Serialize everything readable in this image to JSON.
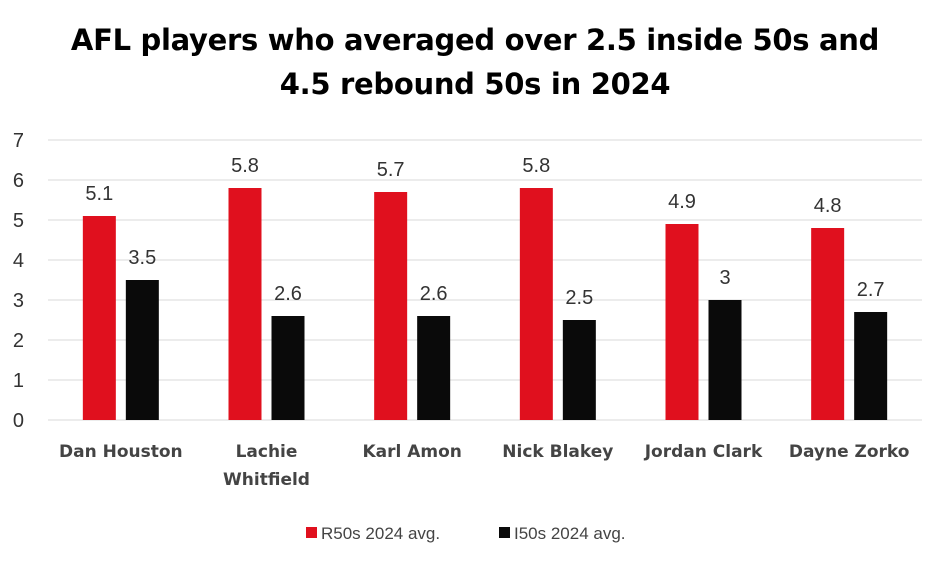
{
  "chart_data": {
    "type": "bar",
    "title": "AFL players who averaged over 2.5 inside 50s and 4.5 rebound 50s in 2024",
    "title_lines": [
      "AFL players who averaged over 2.5 inside 50s and",
      "4.5 rebound 50s in 2024"
    ],
    "categories": [
      "Dan Houston",
      "Lachie Whitfield",
      "Karl Amon",
      "Nick Blakey",
      "Jordan Clark",
      "Dayne Zorko"
    ],
    "category_lines": [
      [
        "Dan Houston"
      ],
      [
        "Lachie",
        "Whitfield"
      ],
      [
        "Karl Amon"
      ],
      [
        "Nick Blakey"
      ],
      [
        "Jordan Clark"
      ],
      [
        "Dayne Zorko"
      ]
    ],
    "series": [
      {
        "name": "R50s 2024 avg.",
        "color": "#E0101E",
        "values": [
          5.1,
          5.8,
          5.7,
          5.8,
          4.9,
          4.8
        ],
        "labels": [
          "5.1",
          "5.8",
          "5.7",
          "5.8",
          "4.9",
          "4.8"
        ]
      },
      {
        "name": "I50s 2024 avg.",
        "color": "#0A0A0A",
        "values": [
          3.5,
          2.6,
          2.6,
          2.5,
          3.0,
          2.7
        ],
        "labels": [
          "3.5",
          "2.6",
          "2.6",
          "2.5",
          "3",
          "2.7"
        ]
      }
    ],
    "ylim": [
      0,
      7
    ],
    "yticks": [
      "0",
      "1",
      "2",
      "3",
      "4",
      "5",
      "6",
      "7"
    ],
    "xlabel": "",
    "ylabel": "",
    "grid": true,
    "gridline_color": "#D9D9D9",
    "legend": "bottom"
  }
}
